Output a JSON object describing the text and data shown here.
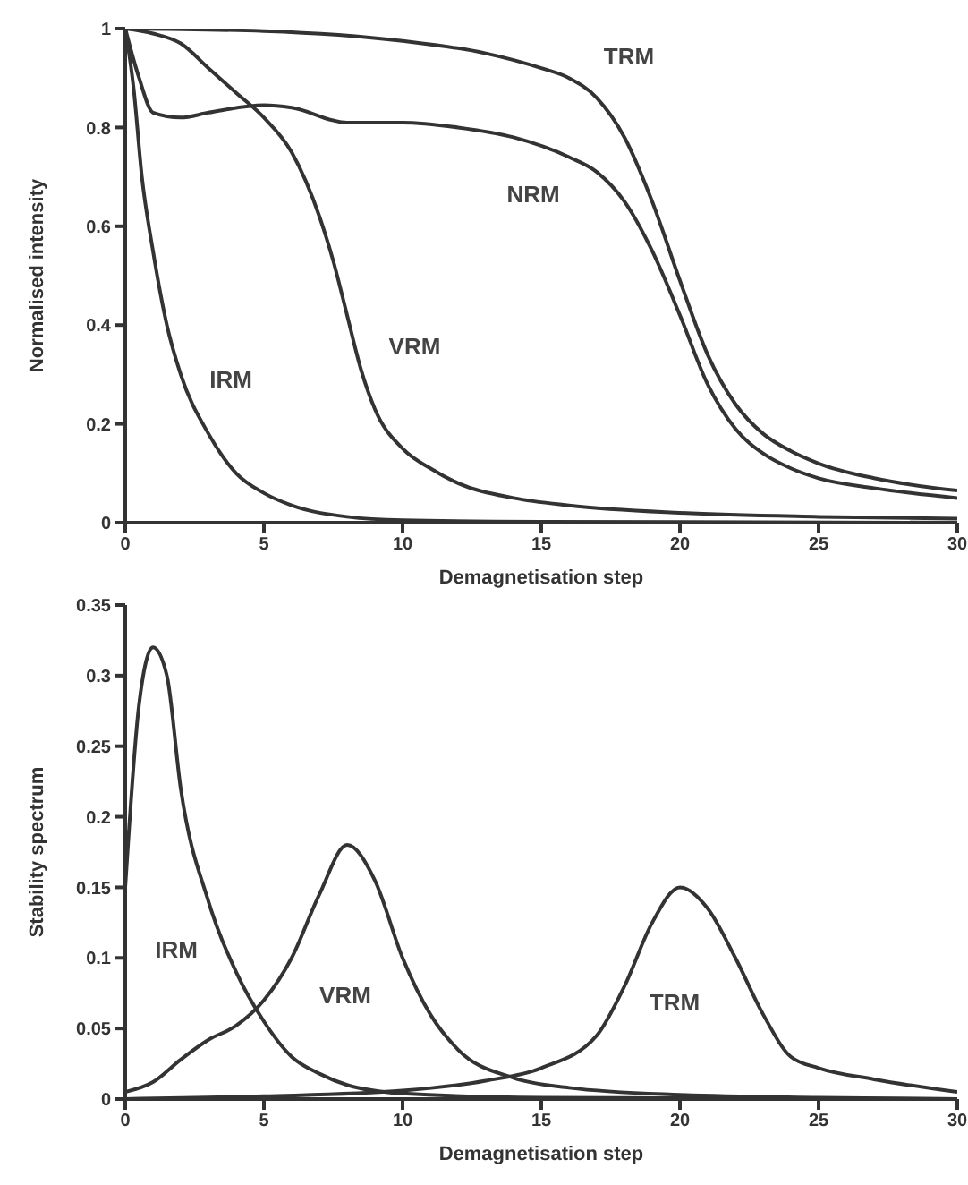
{
  "chart_data": [
    {
      "type": "line",
      "xlabel": "Demagnetisation step",
      "ylabel": "Normalised intensity",
      "xlim": [
        0,
        30
      ],
      "xticks": [
        0,
        5,
        10,
        15,
        20,
        25,
        30
      ],
      "ylim": [
        0,
        1
      ],
      "yticks": [
        0,
        0.2,
        0.4,
        0.6,
        0.8,
        1
      ],
      "grid": false,
      "legend": false,
      "series": [
        {
          "name": "TRM",
          "color": "#333333",
          "x": [
            0,
            5,
            10,
            13,
            15,
            16,
            17,
            18,
            19,
            20,
            21,
            22,
            23,
            24,
            25,
            27,
            30
          ],
          "values": [
            1,
            0.995,
            0.975,
            0.95,
            0.92,
            0.9,
            0.86,
            0.78,
            0.65,
            0.49,
            0.34,
            0.24,
            0.18,
            0.145,
            0.12,
            0.09,
            0.065
          ]
        },
        {
          "name": "NRM",
          "color": "#333333",
          "x": [
            0,
            0.5,
            1,
            2,
            3,
            5,
            6,
            8,
            10,
            12,
            14,
            16,
            17,
            18,
            19,
            20,
            21,
            22,
            23,
            24,
            25,
            27,
            30
          ],
          "values": [
            1,
            0.9,
            0.83,
            0.82,
            0.83,
            0.845,
            0.84,
            0.81,
            0.81,
            0.8,
            0.78,
            0.74,
            0.71,
            0.65,
            0.55,
            0.42,
            0.28,
            0.19,
            0.14,
            0.11,
            0.09,
            0.07,
            0.05
          ]
        },
        {
          "name": "VRM",
          "color": "#333333",
          "x": [
            0,
            1,
            2,
            3,
            4,
            5,
            6,
            7,
            7.5,
            8,
            8.5,
            9,
            10,
            11,
            12,
            14,
            16,
            20,
            25,
            30
          ],
          "values": [
            1,
            0.99,
            0.97,
            0.92,
            0.87,
            0.82,
            0.75,
            0.62,
            0.53,
            0.42,
            0.31,
            0.23,
            0.15,
            0.11,
            0.08,
            0.05,
            0.035,
            0.02,
            0.012,
            0.008
          ]
        },
        {
          "name": "IRM",
          "color": "#333333",
          "x": [
            0,
            0.3,
            0.6,
            1,
            1.5,
            2,
            3,
            4,
            5,
            6,
            8,
            10,
            15,
            30
          ],
          "values": [
            1,
            0.88,
            0.7,
            0.55,
            0.4,
            0.3,
            0.18,
            0.1,
            0.06,
            0.035,
            0.012,
            0.005,
            0.002,
            0
          ]
        }
      ]
    },
    {
      "type": "line",
      "xlabel": "Demagnetisation step",
      "ylabel": "Stability spectrum",
      "xlim": [
        0,
        30
      ],
      "xticks": [
        0,
        5,
        10,
        15,
        20,
        25,
        30
      ],
      "ylim": [
        0,
        0.35
      ],
      "yticks": [
        0,
        0.05,
        0.1,
        0.15,
        0.2,
        0.25,
        0.3,
        0.35
      ],
      "grid": false,
      "legend": false,
      "series": [
        {
          "name": "IRM",
          "color": "#333333",
          "x": [
            0,
            0.5,
            1,
            1.5,
            2,
            3,
            4,
            5,
            6,
            7,
            8,
            10,
            15,
            30
          ],
          "values": [
            0.15,
            0.28,
            0.32,
            0.3,
            0.22,
            0.14,
            0.09,
            0.055,
            0.03,
            0.018,
            0.01,
            0.004,
            0.001,
            0
          ]
        },
        {
          "name": "VRM",
          "color": "#333333",
          "x": [
            0,
            1,
            2,
            3,
            4,
            5,
            6,
            7,
            8,
            9,
            10,
            11,
            12,
            14,
            16,
            20,
            25,
            30
          ],
          "values": [
            0.005,
            0.012,
            0.028,
            0.042,
            0.052,
            0.07,
            0.1,
            0.145,
            0.18,
            0.155,
            0.1,
            0.06,
            0.035,
            0.015,
            0.008,
            0.003,
            0.001,
            0
          ]
        },
        {
          "name": "TRM",
          "color": "#333333",
          "x": [
            0,
            5,
            10,
            13,
            15,
            17,
            18,
            19,
            20,
            21,
            22,
            23,
            24,
            25,
            27,
            30
          ],
          "values": [
            0,
            0.002,
            0.006,
            0.013,
            0.022,
            0.045,
            0.08,
            0.125,
            0.15,
            0.135,
            0.1,
            0.06,
            0.03,
            0.022,
            0.014,
            0.005
          ]
        }
      ]
    }
  ]
}
